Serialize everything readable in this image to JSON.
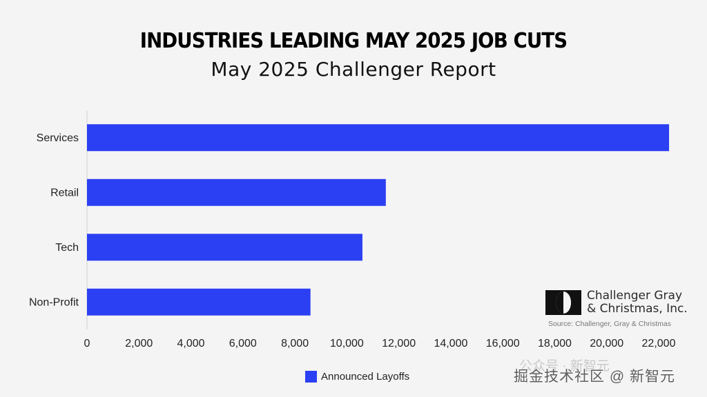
{
  "chart_data": {
    "type": "bar",
    "orientation": "horizontal",
    "title": "INDUSTRIES LEADING MAY 2025 JOB CUTS",
    "subtitle": "May 2025 Challenger Report",
    "categories": [
      "Services",
      "Retail",
      "Tech",
      "Non-Profit"
    ],
    "series": [
      {
        "name": "Announced Layoffs",
        "values": [
          22400,
          11500,
          10600,
          8600
        ],
        "color": "#2b3ff3"
      }
    ],
    "xlim": [
      0,
      22000
    ],
    "xticks": [
      0,
      2000,
      4000,
      6000,
      8000,
      10000,
      12000,
      14000,
      16000,
      18000,
      20000,
      22000
    ],
    "xtick_labels": [
      "0",
      "2,000",
      "4,000",
      "6,000",
      "8,000",
      "10,000",
      "12,000",
      "14,000",
      "16,000",
      "18,000",
      "20,000",
      "22,000"
    ],
    "xlabel": "",
    "ylabel": "",
    "grid": false,
    "legend_position": "bottom-center"
  },
  "branding": {
    "company_line1": "Challenger Gray",
    "company_line2": "& Christmas, Inc.",
    "source": "Source: Challenger, Gray & Christmas"
  },
  "watermark": {
    "main": "掘金技术社区 @ 新智元",
    "faint": "公众号 · 新智元"
  }
}
